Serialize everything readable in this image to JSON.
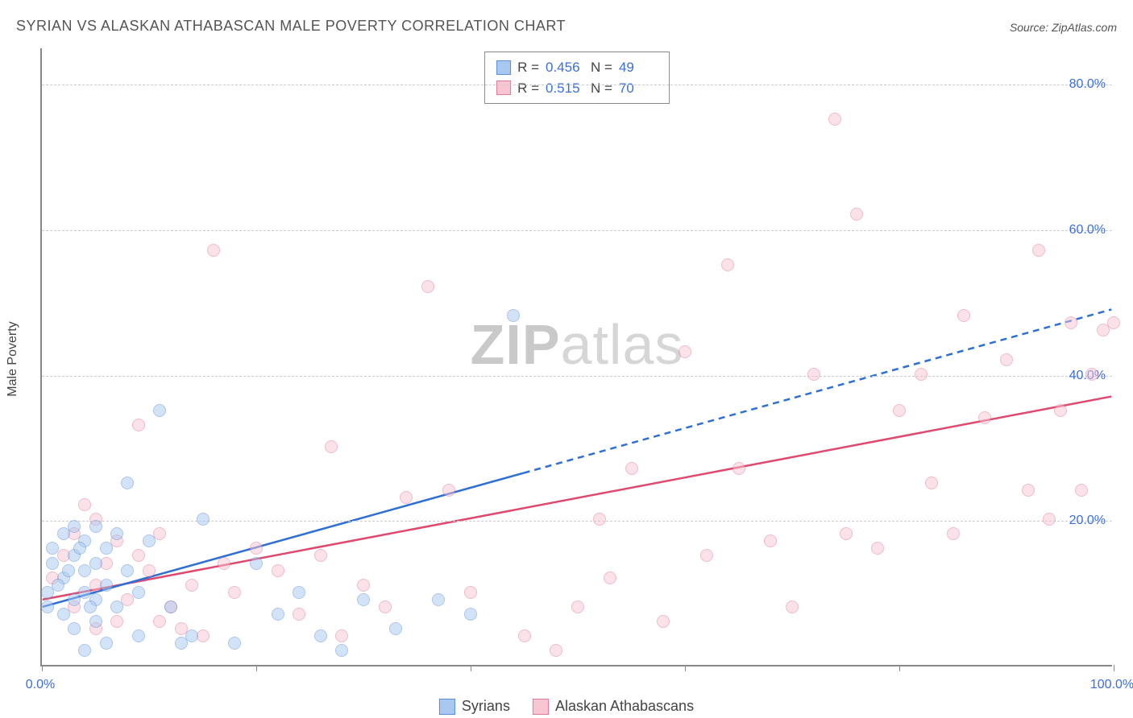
{
  "title": "SYRIAN VS ALASKAN ATHABASCAN MALE POVERTY CORRELATION CHART",
  "source": "Source: ZipAtlas.com",
  "y_axis_label": "Male Poverty",
  "watermark_bold": "ZIP",
  "watermark_rest": "atlas",
  "chart": {
    "type": "scatter",
    "xlim": [
      0,
      100
    ],
    "ylim": [
      0,
      85
    ],
    "background_color": "#ffffff",
    "grid_color": "#cccccc",
    "axis_color": "#888888",
    "y_ticks": [
      20,
      40,
      60,
      80
    ],
    "y_tick_labels": [
      "20.0%",
      "40.0%",
      "60.0%",
      "80.0%"
    ],
    "x_ticks": [
      0,
      20,
      40,
      60,
      80,
      100
    ],
    "x_tick_labels_shown": {
      "0": "0.0%",
      "100": "100.0%"
    },
    "label_color": "#3b6fd6",
    "label_fontsize": 16,
    "title_fontsize": 18,
    "title_color": "#555555",
    "marker_size": 16,
    "marker_opacity": 0.5
  },
  "series": {
    "syrians": {
      "label": "Syrians",
      "fill_color": "#a9c8f0",
      "border_color": "#5b8ed6",
      "line_color": "#2e6fd6",
      "line_width": 2.5,
      "dash_solid_until_x": 45,
      "trend": {
        "x1": 0,
        "y1": 8,
        "x2": 100,
        "y2": 49
      },
      "R_label": "R =",
      "R_value": "0.456",
      "N_label": "N =",
      "N_value": "49",
      "points": [
        [
          1,
          14
        ],
        [
          1,
          16
        ],
        [
          2,
          18
        ],
        [
          2,
          12
        ],
        [
          2,
          7
        ],
        [
          3,
          19
        ],
        [
          3,
          15
        ],
        [
          3,
          9
        ],
        [
          3,
          5
        ],
        [
          4,
          17
        ],
        [
          4,
          13
        ],
        [
          4,
          10
        ],
        [
          4,
          2
        ],
        [
          5,
          19
        ],
        [
          5,
          14
        ],
        [
          5,
          9
        ],
        [
          5,
          6
        ],
        [
          6,
          16
        ],
        [
          6,
          11
        ],
        [
          6,
          3
        ],
        [
          7,
          18
        ],
        [
          7,
          8
        ],
        [
          8,
          13
        ],
        [
          8,
          25
        ],
        [
          9,
          10
        ],
        [
          9,
          4
        ],
        [
          10,
          17
        ],
        [
          11,
          35
        ],
        [
          12,
          8
        ],
        [
          13,
          3
        ],
        [
          14,
          4
        ],
        [
          15,
          20
        ],
        [
          18,
          3
        ],
        [
          20,
          14
        ],
        [
          22,
          7
        ],
        [
          24,
          10
        ],
        [
          26,
          4
        ],
        [
          28,
          2
        ],
        [
          30,
          9
        ],
        [
          33,
          5
        ],
        [
          37,
          9
        ],
        [
          40,
          7
        ],
        [
          44,
          48
        ],
        [
          0.5,
          10
        ],
        [
          0.5,
          8
        ],
        [
          1.5,
          11
        ],
        [
          2.5,
          13
        ],
        [
          3.5,
          16
        ],
        [
          4.5,
          8
        ]
      ]
    },
    "athabascans": {
      "label": "Alaskan Athabascans",
      "fill_color": "#f7c6d2",
      "border_color": "#e17a9a",
      "line_color": "#e0486f",
      "line_width": 2.5,
      "trend": {
        "x1": 0,
        "y1": 9,
        "x2": 100,
        "y2": 37
      },
      "R_label": "R =",
      "R_value": "0.515",
      "N_label": "N =",
      "N_value": "70",
      "points": [
        [
          1,
          12
        ],
        [
          2,
          15
        ],
        [
          3,
          8
        ],
        [
          4,
          22
        ],
        [
          5,
          11
        ],
        [
          5,
          5
        ],
        [
          6,
          14
        ],
        [
          7,
          17
        ],
        [
          8,
          9
        ],
        [
          9,
          33
        ],
        [
          10,
          13
        ],
        [
          11,
          6
        ],
        [
          12,
          8
        ],
        [
          14,
          11
        ],
        [
          15,
          4
        ],
        [
          16,
          57
        ],
        [
          17,
          14
        ],
        [
          18,
          10
        ],
        [
          20,
          16
        ],
        [
          22,
          13
        ],
        [
          24,
          7
        ],
        [
          26,
          15
        ],
        [
          27,
          30
        ],
        [
          28,
          4
        ],
        [
          30,
          11
        ],
        [
          32,
          8
        ],
        [
          34,
          23
        ],
        [
          36,
          52
        ],
        [
          38,
          24
        ],
        [
          40,
          10
        ],
        [
          45,
          4
        ],
        [
          48,
          2
        ],
        [
          50,
          8
        ],
        [
          52,
          20
        ],
        [
          55,
          27
        ],
        [
          58,
          6
        ],
        [
          60,
          43
        ],
        [
          62,
          15
        ],
        [
          64,
          55
        ],
        [
          65,
          27
        ],
        [
          68,
          17
        ],
        [
          70,
          8
        ],
        [
          72,
          40
        ],
        [
          74,
          75
        ],
        [
          75,
          18
        ],
        [
          76,
          62
        ],
        [
          78,
          16
        ],
        [
          80,
          35
        ],
        [
          82,
          40
        ],
        [
          83,
          25
        ],
        [
          85,
          18
        ],
        [
          86,
          48
        ],
        [
          88,
          34
        ],
        [
          90,
          42
        ],
        [
          92,
          24
        ],
        [
          93,
          57
        ],
        [
          94,
          20
        ],
        [
          95,
          35
        ],
        [
          96,
          47
        ],
        [
          97,
          24
        ],
        [
          98,
          40
        ],
        [
          99,
          46
        ],
        [
          100,
          47
        ],
        [
          3,
          18
        ],
        [
          5,
          20
        ],
        [
          7,
          6
        ],
        [
          9,
          15
        ],
        [
          11,
          18
        ],
        [
          13,
          5
        ],
        [
          53,
          12
        ]
      ]
    }
  },
  "legend": {
    "s1": "Syrians",
    "s2": "Alaskan Athabascans"
  }
}
